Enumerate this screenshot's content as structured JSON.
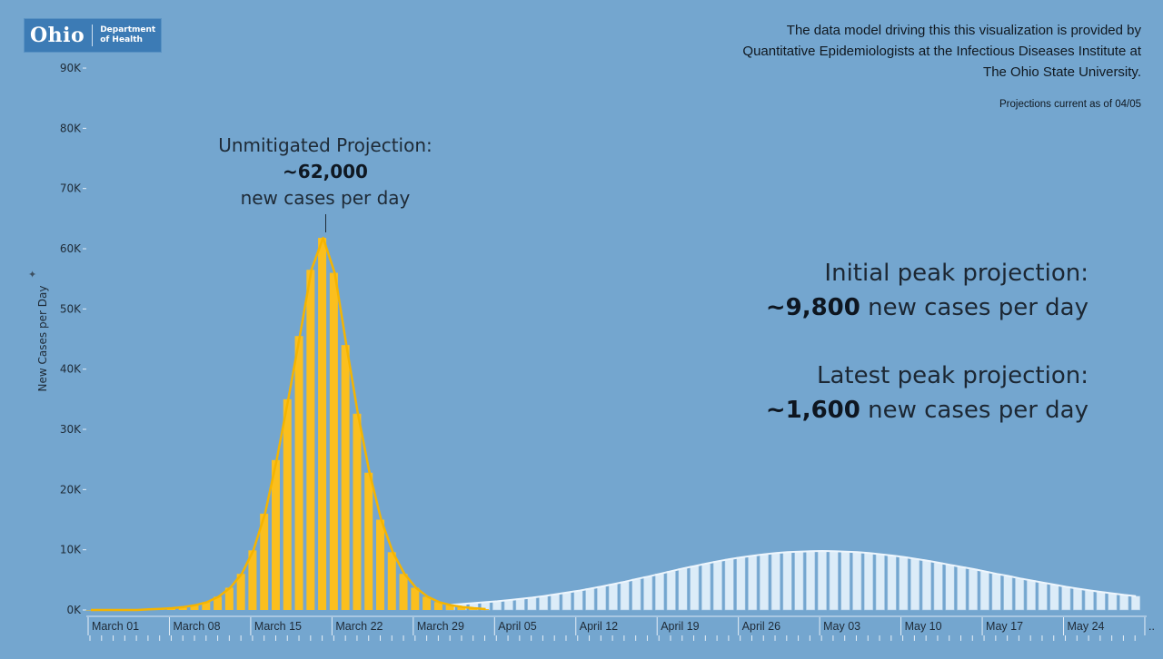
{
  "logo": {
    "name": "Ohio",
    "subtitle_line1": "Department",
    "subtitle_line2": "of Health"
  },
  "source_note": {
    "line1": "The data model driving this this visualization is provided by",
    "line2": "Quantitative Epidemiologists at the Infectious Diseases Institute at",
    "line3": "The Ohio State University."
  },
  "as_of": "Projections current as of 04/05",
  "annotation": {
    "line1": "Unmitigated Projection:",
    "value": "~62,000",
    "line3": "new cases per day"
  },
  "peaks": {
    "initial": {
      "label": "Initial peak projection:",
      "value": "~9,800",
      "suffix": " new cases per day"
    },
    "latest": {
      "label": "Latest peak projection:",
      "value": "~1,600",
      "suffix": " new cases per day"
    }
  },
  "colors": {
    "background": "#74a6cf",
    "unmitigated": "#fbbf1e",
    "unmitigated_line": "#f5b400",
    "mitigated": "#dcecf8",
    "mitigated_edge": "#9fc3e2",
    "text": "#1e2a36"
  },
  "chart_data": {
    "type": "bar",
    "title": "",
    "xlabel": "",
    "ylabel": "New Cases per Day",
    "ylim": [
      0,
      90000
    ],
    "yticks": [
      0,
      10000,
      20000,
      30000,
      40000,
      50000,
      60000,
      70000,
      80000,
      90000
    ],
    "ytick_labels": [
      "0K",
      "10K",
      "20K",
      "30K",
      "40K",
      "50K",
      "60K",
      "70K",
      "80K",
      "90K"
    ],
    "x_start": "March 01",
    "x_days": 91,
    "xtick_labels": [
      "March 01",
      "March 08",
      "March 15",
      "March 22",
      "March 29",
      "April 05",
      "April 12",
      "April 19",
      "April 26",
      "May 03",
      "May 10",
      "May 17",
      "May 24",
      ".."
    ],
    "series": [
      {
        "name": "Unmitigated Projection",
        "style": "bar+line",
        "start_day": 0,
        "values": [
          0,
          0,
          0,
          0,
          0,
          100,
          200,
          300,
          500,
          800,
          1300,
          2200,
          3700,
          6000,
          9900,
          16000,
          24900,
          35000,
          45500,
          56500,
          61800,
          56000,
          44000,
          32600,
          22800,
          15000,
          9600,
          6000,
          3700,
          2200,
          1300,
          800,
          500,
          300,
          150
        ]
      },
      {
        "name": "Mitigated Projection",
        "style": "bar",
        "start_day": 31,
        "values": [
          850,
          1000,
          1150,
          1300,
          1450,
          1650,
          1850,
          2050,
          2300,
          2600,
          2900,
          3200,
          3550,
          3900,
          4300,
          4700,
          5150,
          5550,
          6000,
          6450,
          6900,
          7300,
          7700,
          8100,
          8450,
          8750,
          9000,
          9250,
          9450,
          9600,
          9700,
          9750,
          9800,
          9750,
          9700,
          9600,
          9450,
          9250,
          9050,
          8800,
          8500,
          8200,
          7850,
          7500,
          7150,
          6800,
          6400,
          6000,
          5650,
          5250,
          4900,
          4550,
          4200,
          3850,
          3550,
          3250,
          3000,
          2750,
          2500,
          2300
        ]
      }
    ]
  }
}
